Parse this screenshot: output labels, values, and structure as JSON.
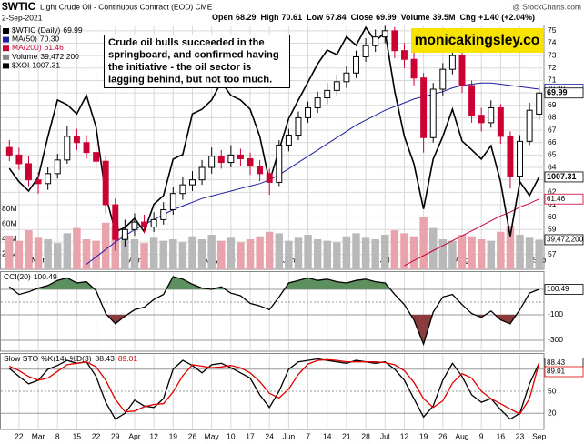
{
  "header": {
    "symbol": "$WTIC",
    "description": "Light Crude Oil - Continuous Contract (EOD) CME",
    "source": "@ StockCharts.com",
    "date": "2-Sep-2021",
    "quote": [
      {
        "label": "Open",
        "value": 68.29
      },
      {
        "label": "High",
        "value": 70.61
      },
      {
        "label": "Low",
        "value": 67.84
      },
      {
        "label": "Close",
        "value": 69.99
      },
      {
        "label": "Volume",
        "value": "39.5M"
      },
      {
        "label": "Chg",
        "value": "+1.40 (+2.04%)"
      }
    ]
  },
  "annotation": [
    "Crude oil bulls succeeded in the",
    "springboard, and confirmed having",
    "the initiative - the oil sector is",
    "lagging behind, but not too much."
  ],
  "watermark": "monicakingsley.co",
  "chart_data": [
    {
      "type": "candlestick",
      "title": "$WTIC (Daily)",
      "up_color": "#000000",
      "down_color": "#cc0033",
      "grid": true,
      "categories": [
        null,
        "22",
        null,
        "Mar",
        null,
        "8",
        null,
        "15",
        null,
        "22",
        null,
        "29",
        null,
        "Apr",
        null,
        "12",
        null,
        "19",
        null,
        "26",
        null,
        "May",
        null,
        "10",
        null,
        "17",
        null,
        "24",
        null,
        "Jun",
        null,
        "7",
        null,
        "14",
        null,
        "21",
        null,
        "28",
        null,
        "Jul",
        null,
        "12",
        null,
        "19",
        null,
        "26",
        null,
        "Aug",
        null,
        "9",
        null,
        "16",
        null,
        "23",
        null,
        "Sep"
      ],
      "open": [
        65.6,
        65.0,
        64.3,
        63.0,
        62.7,
        63.5,
        64.6,
        66.5,
        66.0,
        65.2,
        64.5,
        61.0,
        58.2,
        59.0,
        59.6,
        59.2,
        59.8,
        60.6,
        61.9,
        62.6,
        63.0,
        64.0,
        64.9,
        64.4,
        65.0,
        64.7,
        64.1,
        63.5,
        62.8,
        65.8,
        66.6,
        68.0,
        68.8,
        69.6,
        70.2,
        70.9,
        71.6,
        72.9,
        73.8,
        74.5,
        75.0,
        73.4,
        72.7,
        71.2,
        66.4,
        70.3,
        71.9,
        73.0,
        70.6,
        68.2,
        67.6,
        68.8,
        66.5,
        63.3,
        66.1,
        68.29
      ],
      "high": [
        66.2,
        65.6,
        64.9,
        63.6,
        64.0,
        65.1,
        67.3,
        67.1,
        66.6,
        65.9,
        64.9,
        61.5,
        59.8,
        60.3,
        60.2,
        60.4,
        61.2,
        62.4,
        63.2,
        63.7,
        64.6,
        65.6,
        65.4,
        65.8,
        65.5,
        65.2,
        64.6,
        63.9,
        66.2,
        67.1,
        68.5,
        69.3,
        70.1,
        70.8,
        71.5,
        72.2,
        73.4,
        74.4,
        75.1,
        75.4,
        75.3,
        74.0,
        73.3,
        71.6,
        70.8,
        72.4,
        73.9,
        73.4,
        71.0,
        68.8,
        69.4,
        69.1,
        66.9,
        66.6,
        69.2,
        70.61
      ],
      "low": [
        64.5,
        63.8,
        62.5,
        61.9,
        62.2,
        63.1,
        64.3,
        65.4,
        64.7,
        63.9,
        60.3,
        57.3,
        57.6,
        58.5,
        58.7,
        58.8,
        59.4,
        60.2,
        61.4,
        62.1,
        62.6,
        63.5,
        63.9,
        64.0,
        64.1,
        63.4,
        62.9,
        61.8,
        62.5,
        65.3,
        66.2,
        67.6,
        68.4,
        69.1,
        69.8,
        70.4,
        71.2,
        72.5,
        73.3,
        74.0,
        72.8,
        72.0,
        70.6,
        65.2,
        66.0,
        69.8,
        71.5,
        70.0,
        67.6,
        66.9,
        67.2,
        65.9,
        62.3,
        62.9,
        65.8,
        67.84
      ],
      "close": [
        65.0,
        64.3,
        63.0,
        62.7,
        63.5,
        64.6,
        66.5,
        66.0,
        65.2,
        64.5,
        61.0,
        58.2,
        59.0,
        59.6,
        59.2,
        59.8,
        60.6,
        61.9,
        62.6,
        63.0,
        64.0,
        64.9,
        64.4,
        65.0,
        64.7,
        64.1,
        63.5,
        62.8,
        65.8,
        66.6,
        68.0,
        68.8,
        69.6,
        70.2,
        70.9,
        71.6,
        72.9,
        73.8,
        74.5,
        75.0,
        73.4,
        72.7,
        71.2,
        66.4,
        70.3,
        71.9,
        73.0,
        70.6,
        68.2,
        67.6,
        68.8,
        66.5,
        63.3,
        66.1,
        68.6,
        69.99
      ],
      "ylim": [
        55.8,
        75.5
      ],
      "yticks": [
        57,
        58,
        59,
        60,
        61,
        62,
        63,
        64,
        65,
        66,
        67,
        68,
        69,
        70,
        71,
        72,
        73,
        74,
        75
      ],
      "y2lim": [
        848,
        1270
      ],
      "volume_lim": [
        0,
        326
      ],
      "volume_ticks": [
        {
          "value": 80,
          "label": "80M"
        },
        {
          "value": 60,
          "label": "60M"
        },
        {
          "value": 40,
          "label": "40M"
        },
        {
          "value": 20,
          "label": "20M"
        }
      ],
      "series": [
        {
          "name": "MA(50)",
          "color": "#1f1f9e",
          "last_label": "70.30",
          "values": [
            null,
            null,
            null,
            null,
            null,
            null,
            null,
            null,
            56.2,
            56.8,
            57.4,
            58.0,
            58.5,
            59.0,
            59.4,
            59.8,
            60.2,
            60.6,
            60.9,
            61.2,
            61.5,
            61.7,
            61.9,
            62.1,
            62.3,
            62.5,
            62.7,
            63.0,
            63.4,
            63.9,
            64.4,
            64.9,
            65.4,
            65.9,
            66.4,
            66.9,
            67.4,
            67.8,
            68.2,
            68.6,
            68.9,
            69.2,
            69.5,
            69.7,
            69.9,
            70.1,
            70.4,
            70.6,
            70.7,
            70.8,
            70.8,
            70.7,
            70.6,
            70.5,
            70.4,
            70.3
          ]
        },
        {
          "name": "MA(200)",
          "color": "#cc0033",
          "values": [
            null,
            null,
            null,
            null,
            null,
            null,
            null,
            null,
            null,
            null,
            null,
            null,
            null,
            null,
            null,
            null,
            null,
            null,
            null,
            null,
            null,
            null,
            null,
            null,
            null,
            null,
            null,
            null,
            null,
            null,
            null,
            null,
            null,
            null,
            null,
            null,
            null,
            null,
            null,
            null,
            null,
            56.1,
            56.5,
            56.9,
            57.3,
            57.7,
            58.1,
            58.5,
            58.9,
            59.3,
            59.7,
            60.1,
            60.4,
            60.8,
            61.1,
            61.46
          ]
        },
        {
          "name": "Volume",
          "type": "bar",
          "axis": "volume",
          "up_color": "#b9b9b9",
          "down_color": "#e9a3ad",
          "last_label": "39,472,200",
          "values": [
            45,
            38,
            52,
            42,
            40,
            35,
            48,
            55,
            40,
            38,
            62,
            58,
            45,
            40,
            35,
            42,
            38,
            40,
            36,
            44,
            40,
            46,
            38,
            42,
            36,
            40,
            44,
            50,
            48,
            38,
            42,
            46,
            40,
            38,
            36,
            44,
            48,
            42,
            40,
            46,
            52,
            48,
            44,
            70,
            55,
            40,
            38,
            46,
            44,
            40,
            38,
            50,
            58,
            46,
            42,
            39.4722
          ]
        },
        {
          "name": "$XOI",
          "color": "#000000",
          "axis": "y2",
          "values": [
            1022,
            999,
            983,
            1007,
            1077,
            1140,
            1132,
            1116,
            1148,
            1093,
            975,
            913,
            920,
            936,
            913,
            960,
            975,
            1038,
            1046,
            1116,
            1124,
            1140,
            1171,
            1148,
            1140,
            1124,
            1077,
            999,
            1054,
            1108,
            1140,
            1171,
            1202,
            1226,
            1218,
            1249,
            1234,
            1265,
            1241,
            1257,
            1155,
            1077,
            1030,
            952,
            1038,
            1077,
            1124,
            1069,
            1054,
            1038,
            1061,
            999,
            905,
            999,
            975,
            1007.31
          ]
        }
      ]
    },
    {
      "type": "line",
      "ylim": [
        -386,
        243
      ],
      "yticks": [
        -300,
        -100,
        100
      ],
      "above_color": "#5e8f5e",
      "below_color": "#8a3b3b",
      "series": [
        {
          "name": "CCI(20)",
          "color": "#000000",
          "values": [
            120,
            60,
            80,
            110,
            130,
            170,
            190,
            150,
            160,
            90,
            -90,
            -170,
            -110,
            -60,
            -40,
            20,
            60,
            200,
            180,
            140,
            110,
            100,
            120,
            70,
            50,
            -10,
            -30,
            -60,
            40,
            150,
            170,
            190,
            170,
            180,
            160,
            150,
            170,
            180,
            160,
            150,
            60,
            -20,
            -140,
            -330,
            -80,
            40,
            60,
            -20,
            -90,
            -120,
            -70,
            -140,
            -170,
            -60,
            70,
            100.49
          ]
        }
      ]
    },
    {
      "type": "line",
      "title": "Slow STO",
      "ylim": [
        -2,
        102
      ],
      "yticks": [
        20,
        50,
        80
      ],
      "series": [
        {
          "name": "%K(14)",
          "color": "#000000",
          "values": [
            81,
            70,
            60,
            65,
            80,
            85,
            92,
            88,
            90,
            70,
            35,
            12,
            20,
            38,
            30,
            28,
            40,
            80,
            92,
            85,
            75,
            86,
            88,
            82,
            75,
            68,
            45,
            28,
            50,
            80,
            90,
            92,
            94,
            92,
            90,
            88,
            92,
            90,
            88,
            90,
            80,
            65,
            40,
            15,
            30,
            65,
            88,
            70,
            45,
            35,
            40,
            25,
            12,
            20,
            60,
            88.43
          ]
        },
        {
          "name": "%D(3)",
          "color": "#e00000",
          "values": [
            84,
            78,
            70,
            65,
            68,
            77,
            86,
            88,
            90,
            83,
            65,
            39,
            22,
            23,
            29,
            32,
            33,
            49,
            71,
            86,
            84,
            82,
            83,
            85,
            82,
            75,
            63,
            47,
            41,
            53,
            73,
            87,
            92,
            93,
            92,
            90,
            90,
            90,
            90,
            89,
            86,
            78,
            62,
            40,
            28,
            37,
            61,
            74,
            68,
            50,
            40,
            33,
            26,
            19,
            40,
            89.01
          ]
        }
      ]
    }
  ]
}
